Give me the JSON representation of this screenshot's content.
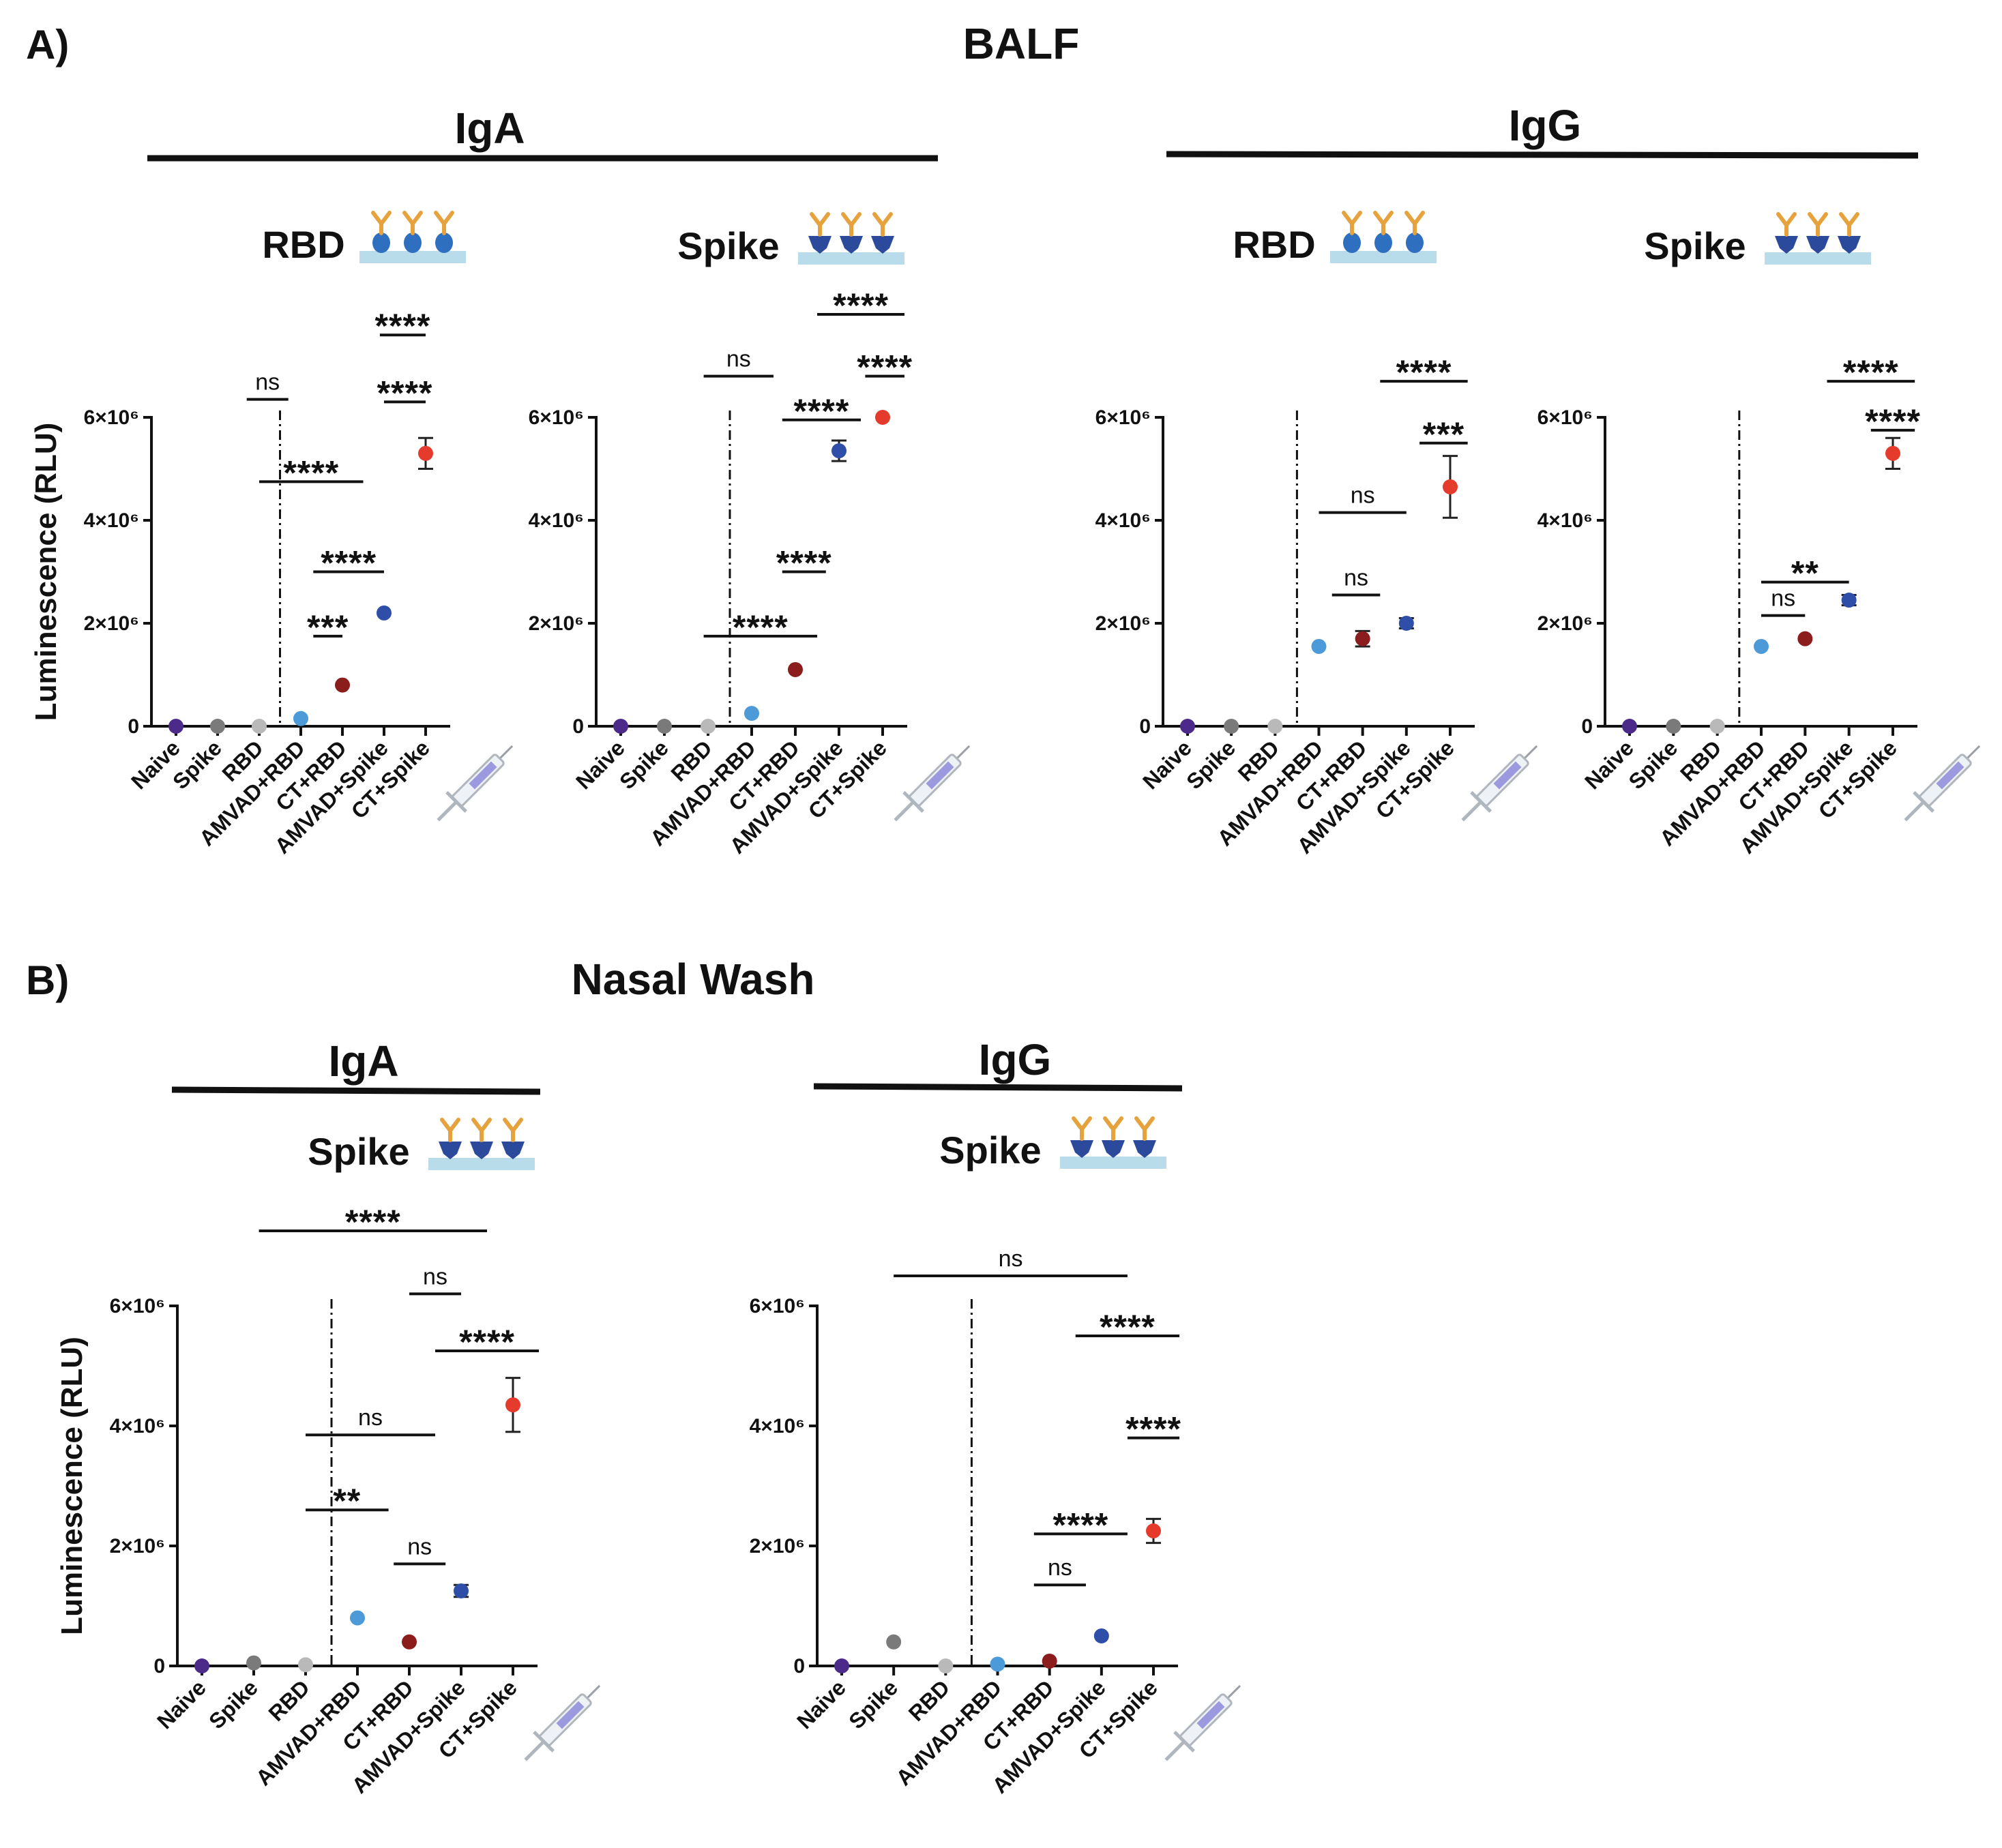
{
  "figure": {
    "panel_a": {
      "label": "A)",
      "title": "BALF"
    },
    "panel_b": {
      "label": "B)",
      "title": "Nasal Wash"
    }
  },
  "colors": {
    "Naive": "#4b2a8a",
    "Spike": "#7a7a7a",
    "RBD": "#b9b9b9",
    "AMVAD+RBD": "#4c9ad8",
    "CT+RBD": "#8b1d1d",
    "AMVAD+Spike": "#2f4ea8",
    "CT+Spike": "#e53b2c",
    "axis": "#111111",
    "plate": "#b8dcea",
    "antibody": "#e6a23c",
    "rbd_protein": "#2f6fc0",
    "spike_protein": "#2c4a9c"
  },
  "groups": [
    {
      "id": "balf-iga",
      "title": "IgA"
    },
    {
      "id": "balf-igg",
      "title": "IgG"
    },
    {
      "id": "nasal-iga",
      "title": "IgA"
    },
    {
      "id": "nasal-igg",
      "title": "IgG"
    }
  ],
  "chart_data": [
    {
      "id": "balf-iga-rbd",
      "panel": "A",
      "group": "IgA",
      "title": "RBD",
      "antigen_icon": "rbd",
      "type": "scatter",
      "ylabel": "Luminescence (RLU)",
      "show_ylabel": true,
      "ylim": [
        0,
        6000000
      ],
      "yticks": [
        0,
        2000000,
        4000000,
        6000000
      ],
      "ytick_labels": [
        "0",
        "2×10⁶",
        "4×10⁶",
        "6×10⁶"
      ],
      "categories": [
        "Naive",
        "Spike",
        "RBD",
        "AMVAD+RBD",
        "CT+RBD",
        "AMVAD+Spike",
        "CT+Spike"
      ],
      "values": [
        0,
        0,
        0,
        150000,
        800000,
        2200000,
        5300000
      ],
      "errors": [
        0,
        0,
        0,
        0,
        0,
        0,
        300000
      ],
      "divider_after": 2,
      "comparisons": [
        {
          "from": 1.7,
          "to": 2.7,
          "y": 6350000,
          "label": "ns"
        },
        {
          "from": 2.0,
          "to": 4.5,
          "y": 4750000,
          "label": "****"
        },
        {
          "from": 3.3,
          "to": 5.0,
          "y": 3000000,
          "label": "****"
        },
        {
          "from": 3.3,
          "to": 4.0,
          "y": 1750000,
          "label": "***"
        },
        {
          "from": 4.9,
          "to": 6.0,
          "y": 7600000,
          "label": "****"
        },
        {
          "from": 5.0,
          "to": 6.0,
          "y": 6300000,
          "label": "****"
        }
      ]
    },
    {
      "id": "balf-iga-spike",
      "panel": "A",
      "group": "IgA",
      "title": "Spike",
      "antigen_icon": "spike",
      "type": "scatter",
      "ylabel": "",
      "show_ylabel": false,
      "ylim": [
        0,
        6000000
      ],
      "yticks": [
        0,
        2000000,
        4000000,
        6000000
      ],
      "ytick_labels": [
        "0",
        "2×10⁶",
        "4×10⁶",
        "6×10⁶"
      ],
      "categories": [
        "Naive",
        "Spike",
        "RBD",
        "AMVAD+RBD",
        "CT+RBD",
        "AMVAD+Spike",
        "CT+Spike"
      ],
      "values": [
        0,
        0,
        0,
        250000,
        1100000,
        5350000,
        6000000
      ],
      "errors": [
        0,
        0,
        0,
        0,
        0,
        200000,
        0
      ],
      "divider_after": 2,
      "comparisons": [
        {
          "from": 1.9,
          "to": 3.5,
          "y": 6800000,
          "label": "ns"
        },
        {
          "from": 1.9,
          "to": 4.5,
          "y": 1750000,
          "label": "****"
        },
        {
          "from": 3.7,
          "to": 4.7,
          "y": 3000000,
          "label": "****"
        },
        {
          "from": 3.7,
          "to": 5.5,
          "y": 5950000,
          "label": "****"
        },
        {
          "from": 4.5,
          "to": 6.5,
          "y": 8000000,
          "label": "****"
        },
        {
          "from": 5.6,
          "to": 6.5,
          "y": 6800000,
          "label": "****"
        }
      ]
    },
    {
      "id": "balf-igg-rbd",
      "panel": "A",
      "group": "IgG",
      "title": "RBD",
      "antigen_icon": "rbd",
      "type": "scatter",
      "ylabel": "",
      "show_ylabel": false,
      "ylim": [
        0,
        6000000
      ],
      "yticks": [
        0,
        2000000,
        4000000,
        6000000
      ],
      "ytick_labels": [
        "0",
        "2×10⁶",
        "4×10⁶",
        "6×10⁶"
      ],
      "categories": [
        "Naive",
        "Spike",
        "RBD",
        "AMVAD+RBD",
        "CT+RBD",
        "AMVAD+Spike",
        "CT+Spike"
      ],
      "values": [
        0,
        0,
        0,
        1550000,
        1700000,
        2000000,
        4650000
      ],
      "errors": [
        0,
        0,
        0,
        0,
        150000,
        100000,
        600000
      ],
      "divider_after": 2,
      "comparisons": [
        {
          "from": 3.0,
          "to": 5.0,
          "y": 4150000,
          "label": "ns"
        },
        {
          "from": 3.3,
          "to": 4.4,
          "y": 2550000,
          "label": "ns"
        },
        {
          "from": 4.4,
          "to": 6.4,
          "y": 6700000,
          "label": "****"
        },
        {
          "from": 5.3,
          "to": 6.4,
          "y": 5500000,
          "label": "***"
        }
      ]
    },
    {
      "id": "balf-igg-spike",
      "panel": "A",
      "group": "IgG",
      "title": "Spike",
      "antigen_icon": "spike",
      "type": "scatter",
      "ylabel": "",
      "show_ylabel": false,
      "ylim": [
        0,
        6000000
      ],
      "yticks": [
        0,
        2000000,
        4000000,
        6000000
      ],
      "ytick_labels": [
        "0",
        "2×10⁶",
        "4×10⁶",
        "6×10⁶"
      ],
      "categories": [
        "Naive",
        "Spike",
        "RBD",
        "AMVAD+RBD",
        "CT+RBD",
        "AMVAD+Spike",
        "CT+Spike"
      ],
      "values": [
        0,
        0,
        0,
        1550000,
        1700000,
        2450000,
        5300000
      ],
      "errors": [
        0,
        0,
        0,
        0,
        0,
        100000,
        300000
      ],
      "divider_after": 2,
      "comparisons": [
        {
          "from": 3.0,
          "to": 5.0,
          "y": 2800000,
          "label": "**"
        },
        {
          "from": 3.0,
          "to": 4.0,
          "y": 2150000,
          "label": "ns"
        },
        {
          "from": 4.5,
          "to": 6.5,
          "y": 6700000,
          "label": "****"
        },
        {
          "from": 5.5,
          "to": 6.5,
          "y": 5750000,
          "label": "****"
        }
      ]
    },
    {
      "id": "nasal-iga-spike",
      "panel": "B",
      "group": "IgA",
      "title": "Spike",
      "antigen_icon": "spike",
      "type": "scatter",
      "ylabel": "Luminescence (RLU)",
      "show_ylabel": true,
      "ylim": [
        0,
        6000000
      ],
      "yticks": [
        0,
        2000000,
        4000000,
        6000000
      ],
      "ytick_labels": [
        "0",
        "2×10⁶",
        "4×10⁶",
        "6×10⁶"
      ],
      "categories": [
        "Naive",
        "Spike",
        "RBD",
        "AMVAD+RBD",
        "CT+RBD",
        "AMVAD+Spike",
        "CT+Spike"
      ],
      "values": [
        0,
        50000,
        20000,
        800000,
        400000,
        1250000,
        4350000
      ],
      "errors": [
        0,
        0,
        0,
        0,
        0,
        100000,
        450000
      ],
      "divider_after": 2,
      "comparisons": [
        {
          "from": 1.1,
          "to": 5.5,
          "y": 7250000,
          "label": "****"
        },
        {
          "from": 4.0,
          "to": 5.0,
          "y": 6200000,
          "label": "ns"
        },
        {
          "from": 4.5,
          "to": 6.5,
          "y": 5250000,
          "label": "****"
        },
        {
          "from": 2.0,
          "to": 4.5,
          "y": 3850000,
          "label": "ns"
        },
        {
          "from": 2.0,
          "to": 3.6,
          "y": 2600000,
          "label": "**"
        },
        {
          "from": 3.7,
          "to": 4.7,
          "y": 1700000,
          "label": "ns"
        }
      ]
    },
    {
      "id": "nasal-igg-spike",
      "panel": "B",
      "group": "IgG",
      "title": "Spike",
      "antigen_icon": "spike",
      "type": "scatter",
      "ylabel": "",
      "show_ylabel": false,
      "ylim": [
        0,
        6000000
      ],
      "yticks": [
        0,
        2000000,
        4000000,
        6000000
      ],
      "ytick_labels": [
        "0",
        "2×10⁶",
        "4×10⁶",
        "6×10⁶"
      ],
      "categories": [
        "Naive",
        "Spike",
        "RBD",
        "AMVAD+RBD",
        "CT+RBD",
        "AMVAD+Spike",
        "CT+Spike"
      ],
      "values": [
        0,
        400000,
        0,
        30000,
        80000,
        500000,
        2250000
      ],
      "errors": [
        0,
        0,
        0,
        0,
        0,
        0,
        200000
      ],
      "divider_after": 2,
      "comparisons": [
        {
          "from": 1.0,
          "to": 5.5,
          "y": 6500000,
          "label": "ns"
        },
        {
          "from": 4.5,
          "to": 6.5,
          "y": 5500000,
          "label": "****"
        },
        {
          "from": 5.5,
          "to": 6.5,
          "y": 3800000,
          "label": "****"
        },
        {
          "from": 3.7,
          "to": 5.5,
          "y": 2200000,
          "label": "****"
        },
        {
          "from": 3.7,
          "to": 4.7,
          "y": 1350000,
          "label": "ns"
        }
      ]
    }
  ]
}
